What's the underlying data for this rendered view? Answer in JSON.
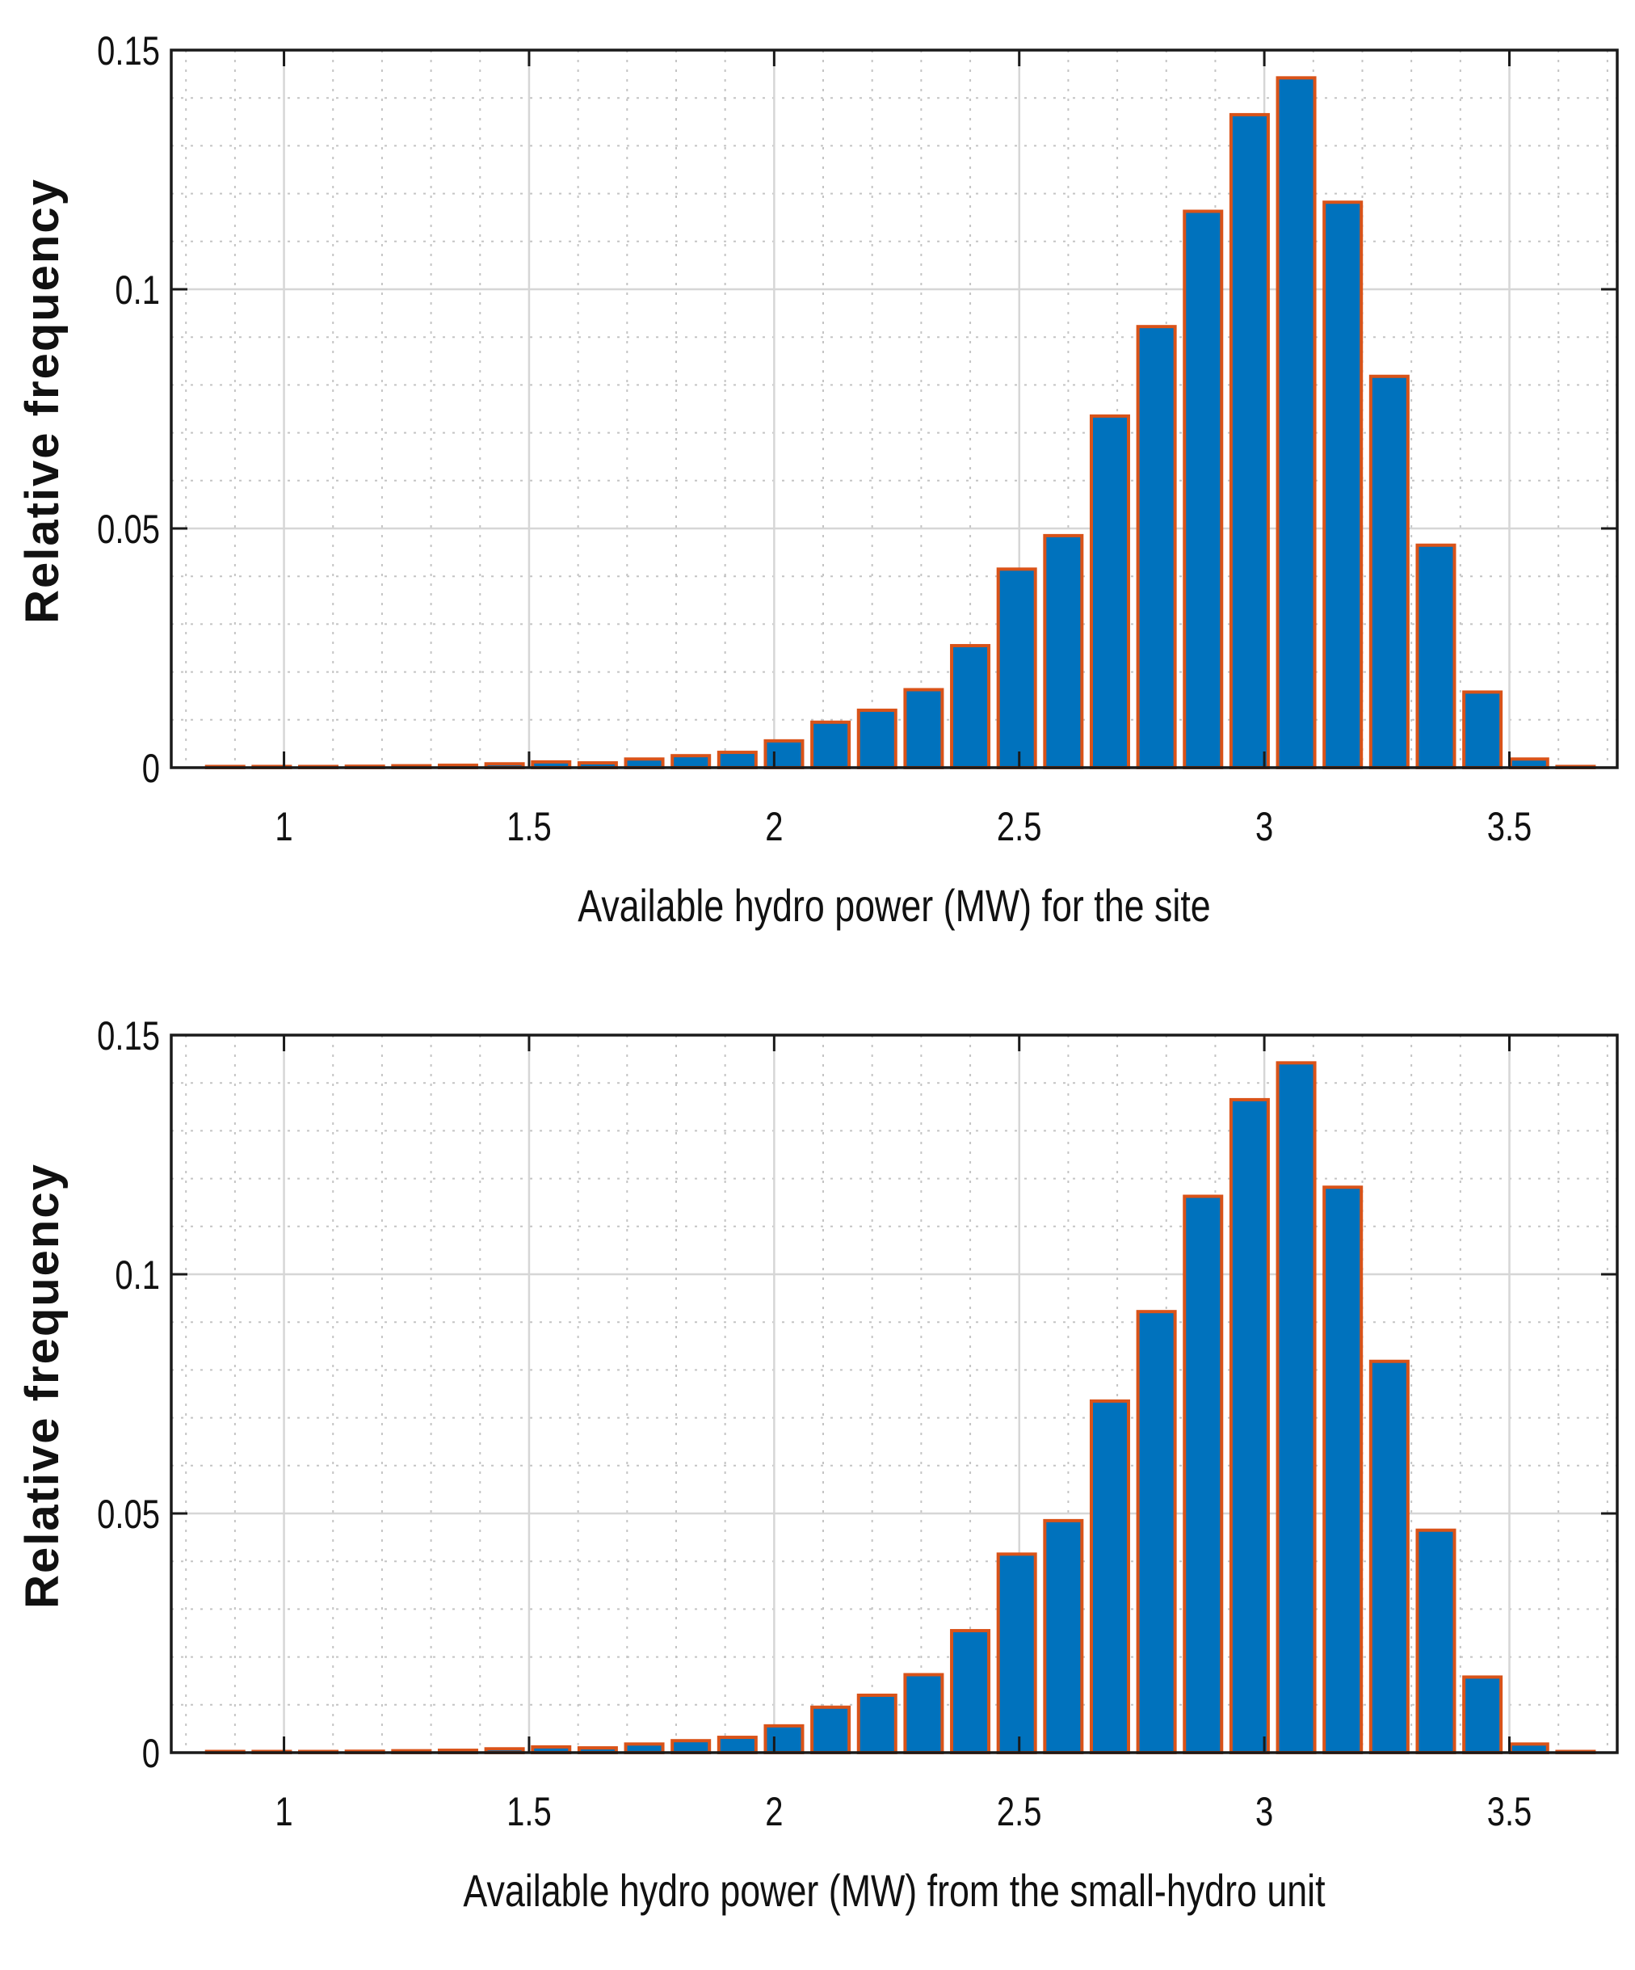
{
  "chart_data": [
    {
      "type": "bar",
      "title": "",
      "xlabel": "Available hydro power (MW) for the site",
      "ylabel": "Relative frequency",
      "xlim": [
        0.77,
        3.72
      ],
      "ylim": [
        0,
        0.15
      ],
      "grid": true,
      "minor_grid": true,
      "xticks": [
        1,
        1.5,
        2,
        2.5,
        3,
        3.5
      ],
      "xtick_labels": [
        "1",
        "1.5",
        "2",
        "2.5",
        "3",
        "3.5"
      ],
      "yticks": [
        0,
        0.05,
        0.1,
        0.15
      ],
      "ytick_labels": [
        "0",
        "0.05",
        "0.1",
        "0.15"
      ],
      "bar_color": "#0072BD",
      "edge_color": "#D95319",
      "x": [
        0.88,
        0.975,
        1.07,
        1.165,
        1.26,
        1.355,
        1.45,
        1.545,
        1.64,
        1.735,
        1.83,
        1.925,
        2.02,
        2.115,
        2.21,
        2.305,
        2.4,
        2.495,
        2.59,
        2.685,
        2.78,
        2.875,
        2.97,
        3.065,
        3.16,
        3.255,
        3.35,
        3.445,
        3.54,
        3.635
      ],
      "values": [
        0.0002,
        0.0001,
        0.0001,
        0.0003,
        0.0004,
        0.0005,
        0.0008,
        0.0012,
        0.001,
        0.0018,
        0.0025,
        0.0032,
        0.0056,
        0.0095,
        0.012,
        0.0163,
        0.0255,
        0.0415,
        0.0485,
        0.0735,
        0.0922,
        0.1163,
        0.1365,
        0.1442,
        0.1182,
        0.0818,
        0.0465,
        0.0158,
        0.0018,
        0.0
      ]
    },
    {
      "type": "bar",
      "title": "",
      "xlabel": "Available hydro power (MW) from the small-hydro unit",
      "ylabel": "Relative frequency",
      "xlim": [
        0.77,
        3.72
      ],
      "ylim": [
        0,
        0.15
      ],
      "grid": true,
      "minor_grid": true,
      "xticks": [
        1,
        1.5,
        2,
        2.5,
        3,
        3.5
      ],
      "xtick_labels": [
        "1",
        "1.5",
        "2",
        "2.5",
        "3",
        "3.5"
      ],
      "yticks": [
        0,
        0.05,
        0.1,
        0.15
      ],
      "ytick_labels": [
        "0",
        "0.05",
        "0.1",
        "0.15"
      ],
      "bar_color": "#0072BD",
      "edge_color": "#D95319",
      "x": [
        0.88,
        0.975,
        1.07,
        1.165,
        1.26,
        1.355,
        1.45,
        1.545,
        1.64,
        1.735,
        1.83,
        1.925,
        2.02,
        2.115,
        2.21,
        2.305,
        2.4,
        2.495,
        2.59,
        2.685,
        2.78,
        2.875,
        2.97,
        3.065,
        3.16,
        3.255,
        3.35,
        3.445,
        3.54,
        3.635
      ],
      "values": [
        0.0002,
        0.0001,
        0.0001,
        0.0003,
        0.0004,
        0.0005,
        0.0008,
        0.0012,
        0.001,
        0.0018,
        0.0025,
        0.0032,
        0.0056,
        0.0095,
        0.012,
        0.0163,
        0.0255,
        0.0415,
        0.0485,
        0.0735,
        0.0922,
        0.1163,
        0.1365,
        0.1442,
        0.1182,
        0.0818,
        0.0465,
        0.0158,
        0.0018,
        0.0
      ]
    }
  ]
}
